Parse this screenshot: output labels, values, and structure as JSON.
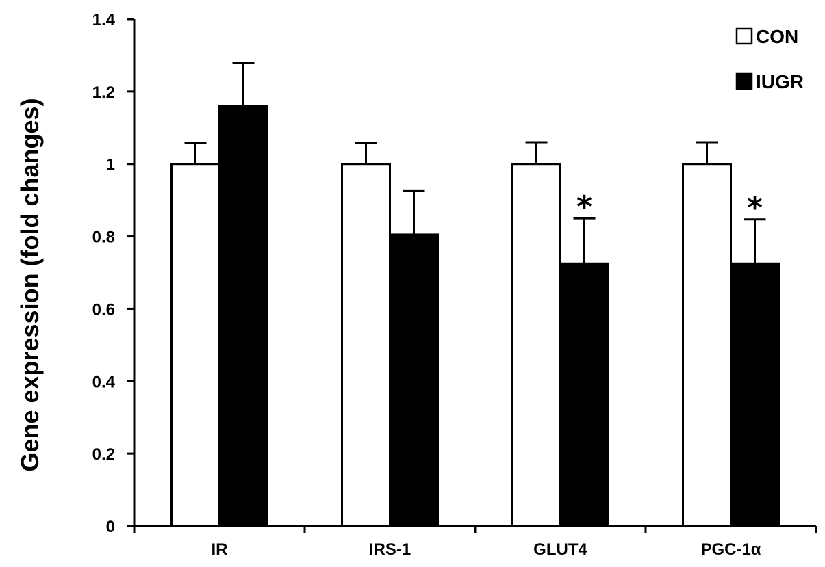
{
  "chart_data": {
    "type": "bar",
    "title": "",
    "xlabel": "",
    "ylabel": "Gene expression (fold changes)",
    "ylim": [
      0,
      1.4
    ],
    "yticks": [
      0,
      0.2,
      0.4,
      0.6,
      0.8,
      1,
      1.2,
      1.4
    ],
    "ytick_labels": [
      "0",
      "0.2",
      "0.4",
      "0.6",
      "0.8",
      "1",
      "1.2",
      "1.4"
    ],
    "categories": [
      "IR",
      "IRS-1",
      "GLUT4",
      "PGC-1α"
    ],
    "series": [
      {
        "name": "CON",
        "values": [
          1.0,
          1.0,
          1.0,
          1.0
        ],
        "errors": [
          0.058,
          0.058,
          0.06,
          0.06
        ],
        "color": "#ffffff"
      },
      {
        "name": "IUGR",
        "values": [
          1.16,
          0.805,
          0.725,
          0.725
        ],
        "errors": [
          0.12,
          0.12,
          0.125,
          0.122
        ],
        "color": "#000000"
      }
    ],
    "annotations": [
      {
        "category": "GLUT4",
        "series": "IUGR",
        "text": "*"
      },
      {
        "category": "PGC-1α",
        "series": "IUGR",
        "text": "*"
      }
    ],
    "legend_position": "top-right",
    "grid": false
  }
}
